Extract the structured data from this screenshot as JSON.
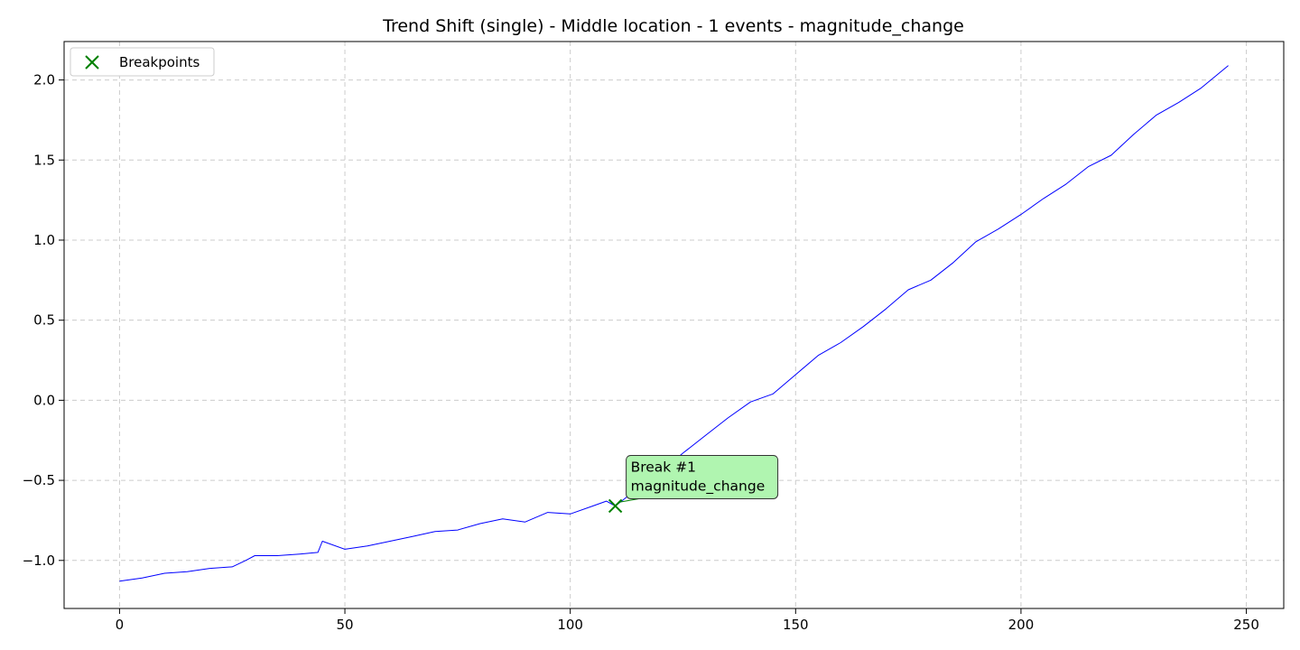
{
  "chart_data": {
    "type": "line",
    "title": "Trend Shift (single) - Middle location - 1 events - magnitude_change",
    "xlabel": "",
    "ylabel": "",
    "xlim": [
      -12.3,
      258.3
    ],
    "ylim": [
      -1.3,
      2.24
    ],
    "xticks": [
      0,
      50,
      100,
      150,
      200,
      250
    ],
    "yticks": [
      -1.0,
      -0.5,
      0.0,
      0.5,
      1.0,
      1.5,
      2.0
    ],
    "ytick_labels": [
      "−1.0",
      "−0.5",
      "0.0",
      "0.5",
      "1.0",
      "1.5",
      "2.0"
    ],
    "grid": true,
    "legend_position": "top-left",
    "series": [
      {
        "color": "#0000ff",
        "x": [
          0,
          5,
          10,
          15,
          20,
          25,
          28,
          30,
          35,
          40,
          44,
          45,
          50,
          55,
          60,
          65,
          70,
          75,
          80,
          85,
          90,
          95,
          100,
          105,
          108,
          110,
          115,
          120,
          125,
          130,
          135,
          140,
          145,
          150,
          155,
          160,
          165,
          170,
          175,
          180,
          185,
          190,
          195,
          200,
          205,
          210,
          215,
          220,
          225,
          230,
          235,
          240,
          246
        ],
        "y": [
          -1.13,
          -1.11,
          -1.08,
          -1.07,
          -1.05,
          -1.04,
          -1.0,
          -0.97,
          -0.97,
          -0.96,
          -0.95,
          -0.88,
          -0.93,
          -0.91,
          -0.88,
          -0.85,
          -0.82,
          -0.81,
          -0.77,
          -0.74,
          -0.76,
          -0.7,
          -0.71,
          -0.66,
          -0.63,
          -0.66,
          -0.55,
          -0.45,
          -0.33,
          -0.22,
          -0.11,
          -0.01,
          0.04,
          0.16,
          0.28,
          0.36,
          0.46,
          0.57,
          0.69,
          0.75,
          0.86,
          0.99,
          1.07,
          1.16,
          1.26,
          1.35,
          1.46,
          1.53,
          1.66,
          1.78,
          1.86,
          1.95,
          2.09
        ]
      }
    ],
    "breakpoints": [
      {
        "x": 110,
        "y": -0.66,
        "label": "Break #1\nmagnitude_change"
      }
    ],
    "legend": [
      {
        "label": "Breakpoints",
        "marker": "x",
        "color": "#008000"
      }
    ],
    "colors": {
      "line": "#0000ff",
      "marker": "#008000",
      "annotation_fill": "#b0f5b0",
      "grid": "#cccccc"
    }
  }
}
